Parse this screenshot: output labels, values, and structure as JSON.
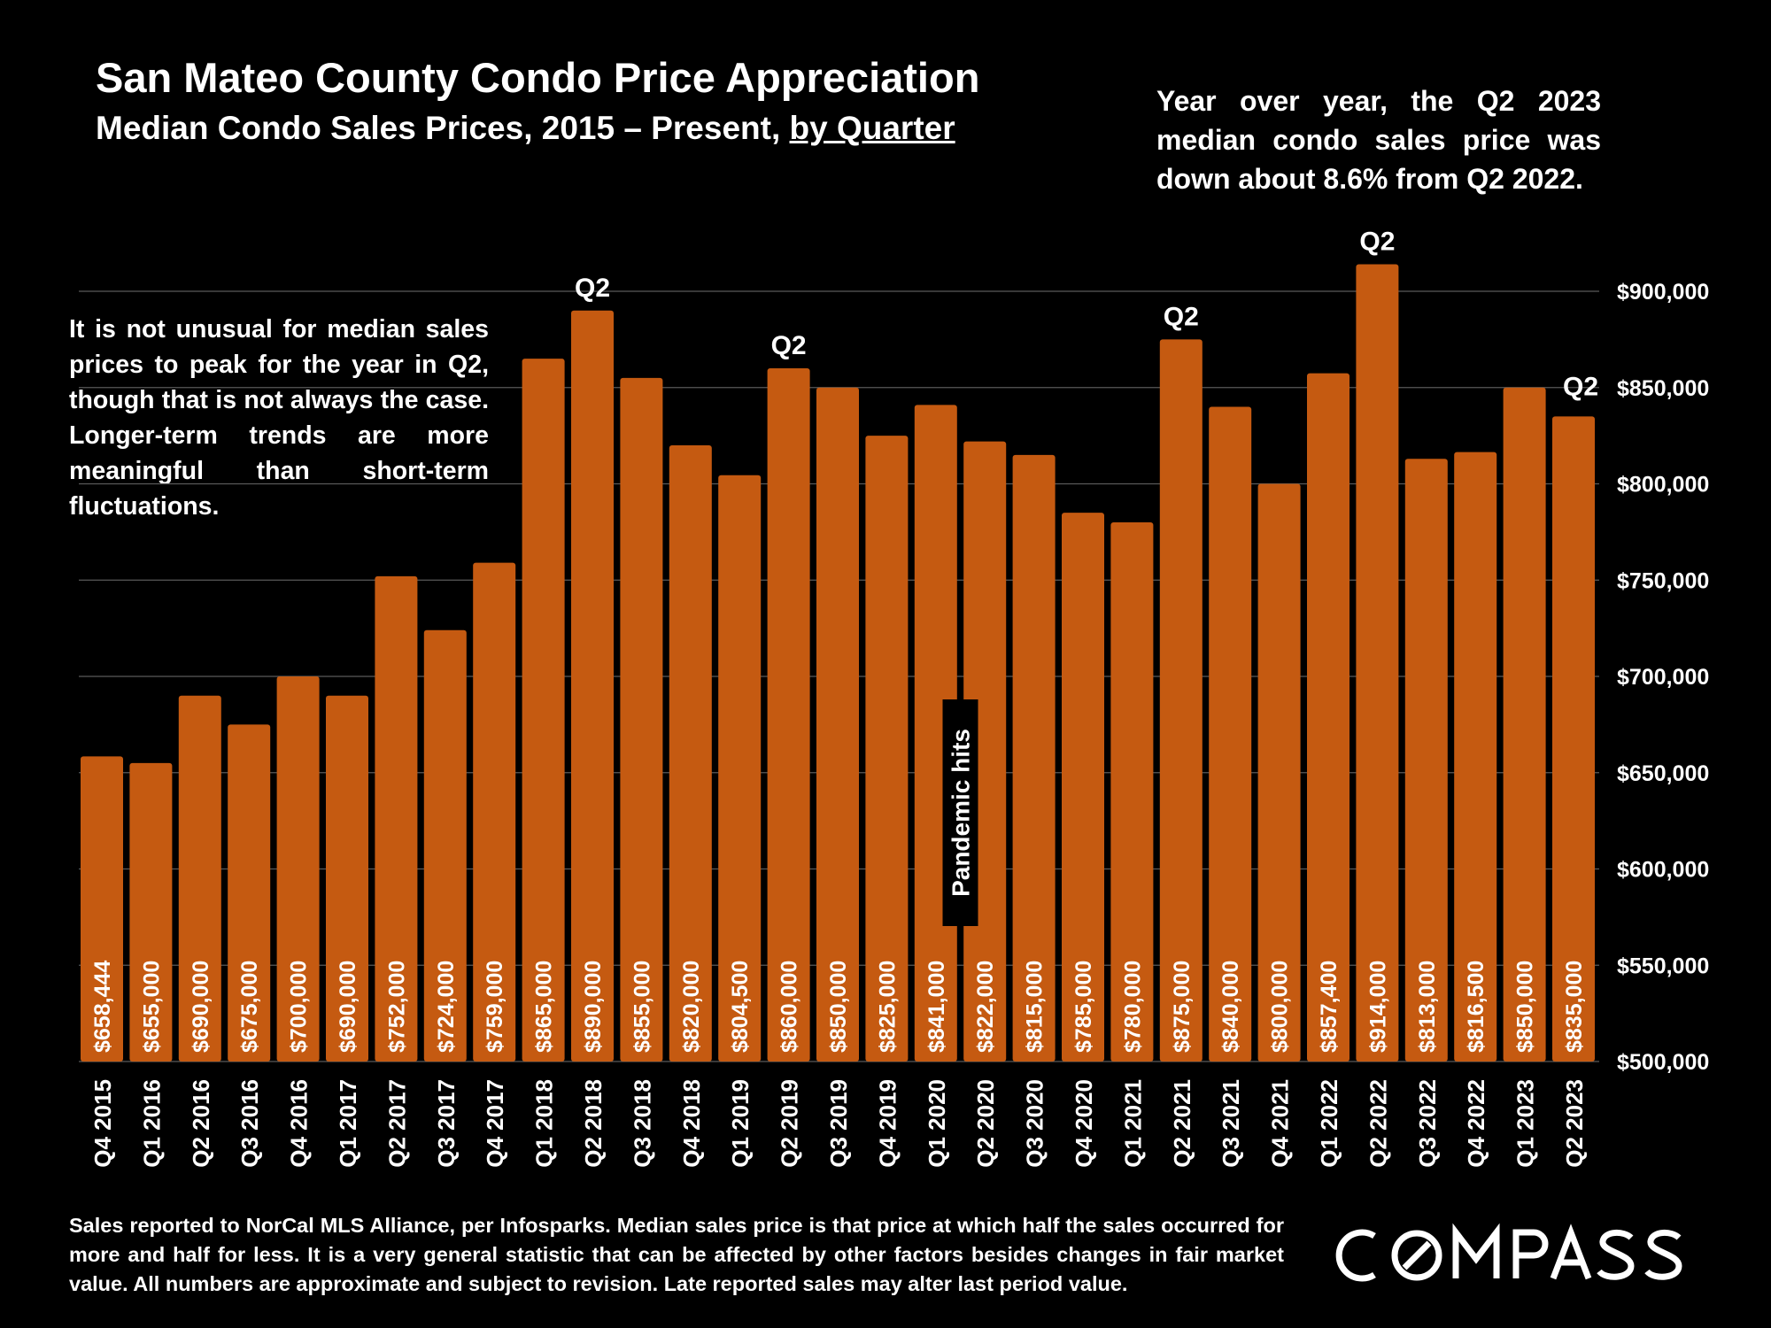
{
  "header": {
    "title": "San Mateo County Condo Price Appreciation",
    "subtitle_main": "Median Condo Sales Prices, 2015 – Present, ",
    "subtitle_underlined": "by Quarter"
  },
  "annotations": {
    "yoy_note": "Year over year, the Q2 2023 median condo sales price was down about 8.6% from Q2 2022.",
    "seasonal_note": "It is not unusual for median sales prices to peak for the year in Q2, though that is not always the case. Longer-term trends are more meaningful than short-term fluctuations.",
    "pandemic_label": "Pandemic hits",
    "peak_label": "Q2"
  },
  "footnote": "Sales reported to NorCal MLS Alliance, per Infosparks. Median sales price is that price at which half the sales occurred for more and half for less. It is a very general statistic that can be affected by other factors besides changes in fair market value. All numbers are approximate and subject to revision. Late reported sales may alter last period value.",
  "brand": {
    "logo_text": "COMPASS"
  },
  "colors": {
    "background": "#000000",
    "bar": "#C55A11",
    "text": "#FFFFFF",
    "grid": "#595959"
  },
  "chart_data": {
    "type": "bar",
    "categories": [
      "Q4 2015",
      "Q1 2016",
      "Q2 2016",
      "Q3 2016",
      "Q4 2016",
      "Q1 2017",
      "Q2 2017",
      "Q3 2017",
      "Q4 2017",
      "Q1 2018",
      "Q2 2018",
      "Q3 2018",
      "Q4 2018",
      "Q1 2019",
      "Q2 2019",
      "Q3 2019",
      "Q4 2019",
      "Q1 2020",
      "Q2 2020",
      "Q3 2020",
      "Q4 2020",
      "Q1 2021",
      "Q2 2021",
      "Q3 2021",
      "Q4 2021",
      "Q1 2022",
      "Q2 2022",
      "Q3 2022",
      "Q4 2022",
      "Q1 2023",
      "Q2 2023"
    ],
    "values": [
      658444,
      655000,
      690000,
      675000,
      700000,
      690000,
      752000,
      724000,
      759000,
      865000,
      890000,
      855000,
      820000,
      804500,
      860000,
      850000,
      825000,
      841000,
      822000,
      815000,
      785000,
      780000,
      875000,
      840000,
      800000,
      857400,
      914000,
      813000,
      816500,
      850000,
      835000
    ],
    "value_labels": [
      "$658,444",
      "$655,000",
      "$690,000",
      "$675,000",
      "$700,000",
      "$690,000",
      "$752,000",
      "$724,000",
      "$759,000",
      "$865,000",
      "$890,000",
      "$855,000",
      "$820,000",
      "$804,500",
      "$860,000",
      "$850,000",
      "$825,000",
      "$841,000",
      "$822,000",
      "$815,000",
      "$785,000",
      "$780,000",
      "$875,000",
      "$840,000",
      "$800,000",
      "$857,400",
      "$914,000",
      "$813,000",
      "$816,500",
      "$850,000",
      "$835,000"
    ],
    "y_ticks": [
      "$500,000",
      "$550,000",
      "$600,000",
      "$650,000",
      "$700,000",
      "$750,000",
      "$800,000",
      "$850,000",
      "$900,000"
    ],
    "y_tick_values": [
      500000,
      550000,
      600000,
      650000,
      700000,
      750000,
      800000,
      850000,
      900000
    ],
    "ylim": [
      500000,
      900000
    ],
    "y_axis_side": "right",
    "grid": true,
    "q2_marked_categories": [
      "Q2 2018",
      "Q2 2019",
      "Q2 2021",
      "Q2 2022",
      "Q2 2023"
    ],
    "pandemic_category": "Q1 2020"
  }
}
